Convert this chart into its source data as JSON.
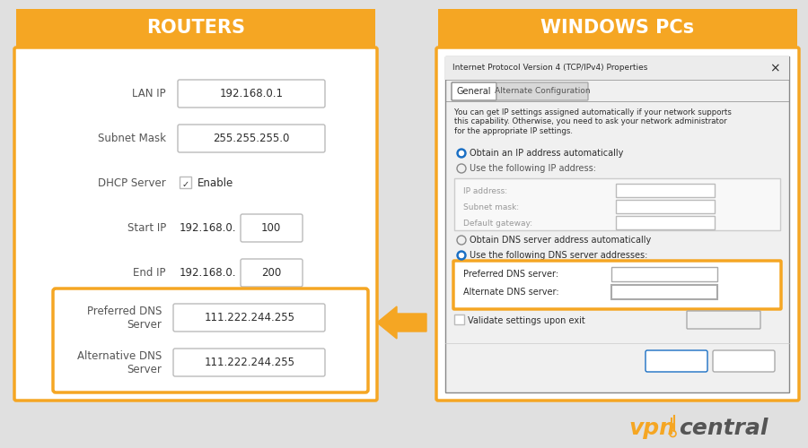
{
  "bg_color": "#e0e0e0",
  "gold": "#F5A623",
  "white": "#FFFFFF",
  "text_dark": "#2c2c2c",
  "text_gray": "#555555",
  "text_light": "#999999",
  "blue_radio": "#1a6fc4",
  "border_gray": "#bbbbbb",
  "title_left": "ROUTERS",
  "title_right": "WINDOWS PCs",
  "win_dialog_title": "Internet Protocol Version 4 (TCP/IPv4) Properties",
  "win_description": "You can get IP settings assigned automatically if your network supports\nthis capability. Otherwise, you need to ask your network administrator\nfor the appropriate IP settings.",
  "ip_fields": [
    "IP address:",
    "Subnet mask:",
    "Default gateway:"
  ],
  "dns_value": "111 . 222 . 244 . 255",
  "router_dns_value": "111.222.244.255"
}
